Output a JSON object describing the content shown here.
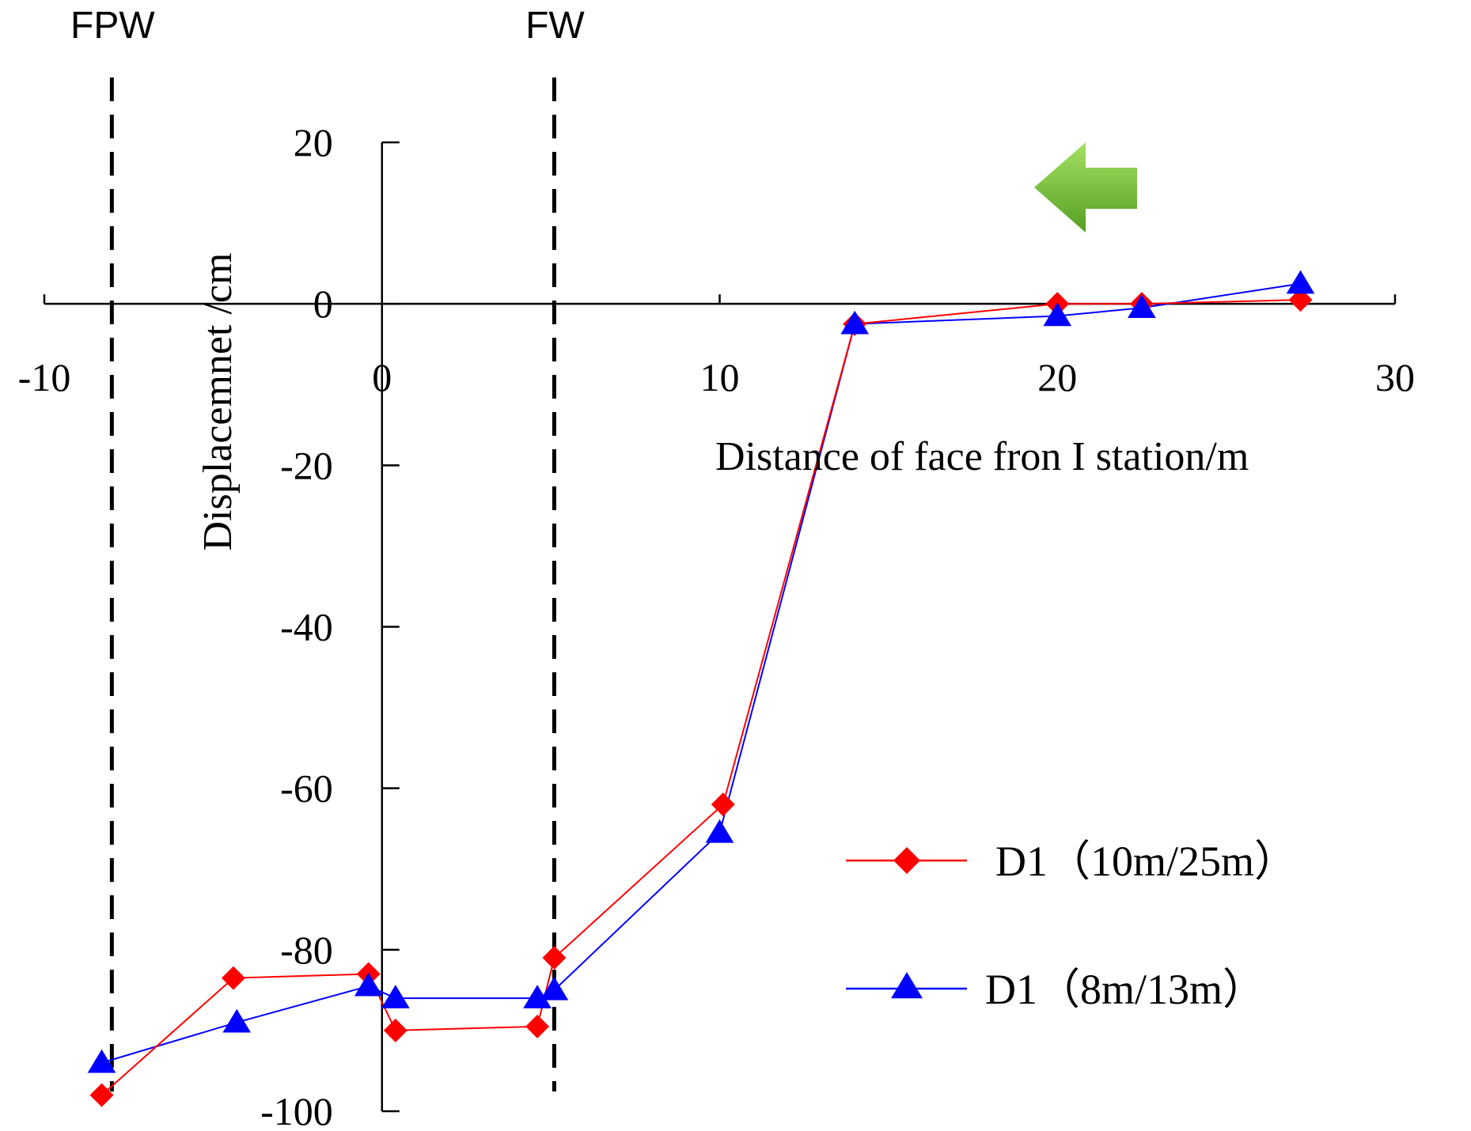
{
  "chart_data": {
    "type": "line",
    "title": "",
    "xlabel": "Distance of face fron I station/m",
    "ylabel": "Displacemnet /cm",
    "xlim": [
      -10,
      30
    ],
    "ylim": [
      -100,
      20
    ],
    "x_ticks": [
      -10,
      0,
      10,
      20,
      30
    ],
    "y_ticks": [
      20,
      0,
      -20,
      -40,
      -60,
      -80,
      -100
    ],
    "x_tick_labels": [
      "-10",
      "0",
      "10",
      "20",
      "30"
    ],
    "y_tick_labels": [
      "20",
      "0",
      "-20",
      "-40",
      "-60",
      "-80",
      "-100"
    ],
    "grid": false,
    "legend_position": "bottom-right",
    "vertical_markers": [
      {
        "label": "FPW",
        "x": -8
      },
      {
        "label": "FW",
        "x": 5.1
      }
    ],
    "direction_arrow": {
      "direction": "left",
      "color": "#6fbf2a"
    },
    "series": [
      {
        "name": "D1（10m/25m）",
        "color": "#ff0000",
        "marker": "diamond",
        "x": [
          -8.3,
          -4.4,
          -0.4,
          0.4,
          4.6,
          5.1,
          10.1,
          14.0,
          20.0,
          22.5,
          27.2
        ],
        "y": [
          -98,
          -83.5,
          -83,
          -90,
          -89.5,
          -81,
          -62,
          -2.5,
          0,
          0,
          0.5
        ]
      },
      {
        "name": "D1（8m/13m）",
        "color": "#0000ff",
        "marker": "triangle",
        "x": [
          -8.3,
          -4.3,
          -0.4,
          0.4,
          4.6,
          5.1,
          10.0,
          14.0,
          20.0,
          22.5,
          27.2
        ],
        "y": [
          -94,
          -89,
          -84.5,
          -86,
          -86,
          -85,
          -65.5,
          -2.5,
          -1.5,
          -0.5,
          2.5
        ]
      }
    ]
  }
}
